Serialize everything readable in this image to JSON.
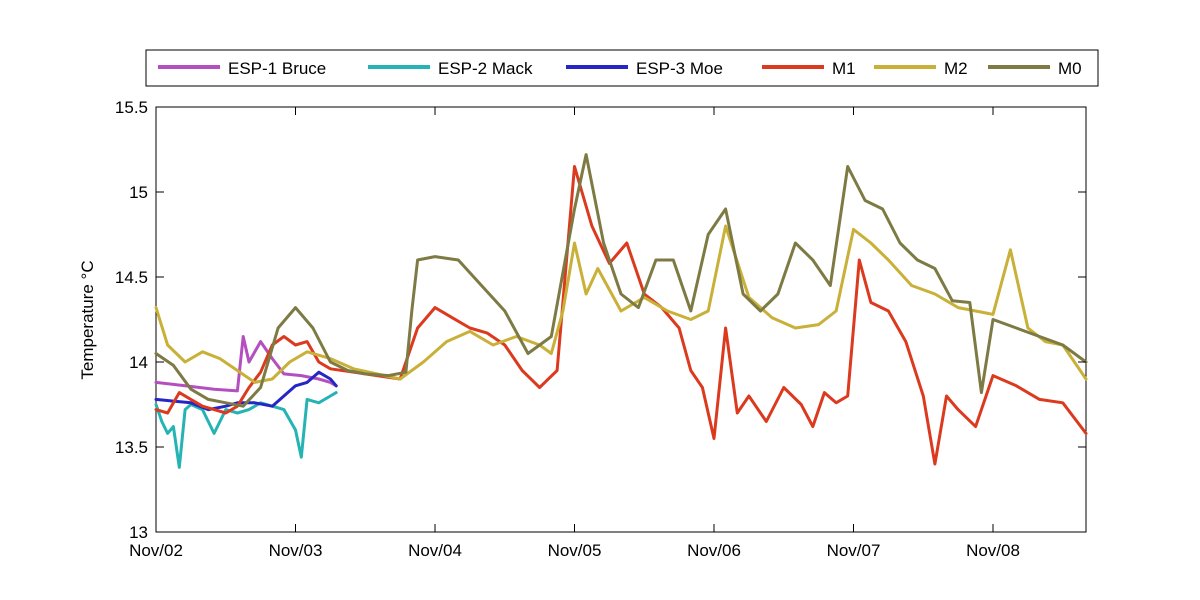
{
  "chart_data": {
    "type": "line",
    "title": "",
    "xlabel": "",
    "ylabel": "Temperature °C",
    "ylim": [
      13,
      15.5
    ],
    "xlim": [
      "2012-11-02",
      "2012-11-08 16:00"
    ],
    "x_ticks": [
      "Nov/02",
      "Nov/03",
      "Nov/04",
      "Nov/05",
      "Nov/06",
      "Nov/07",
      "Nov/08"
    ],
    "y_ticks": [
      "13",
      "13.5",
      "14",
      "14.5",
      "15",
      "15.5"
    ],
    "grid": false,
    "legend_position": "top",
    "series": [
      {
        "name": "ESP-1 Bruce",
        "color": "#b44fc0",
        "x": [
          "2012-11-02 00:00",
          "2012-11-02 05:00",
          "2012-11-02 10:00",
          "2012-11-02 14:00",
          "2012-11-02 15:00",
          "2012-11-02 16:00",
          "2012-11-02 18:00",
          "2012-11-02 20:00",
          "2012-11-02 22:00",
          "2012-11-03 01:00",
          "2012-11-03 04:00",
          "2012-11-03 06:00",
          "2012-11-03 07:00"
        ],
        "y": [
          13.88,
          13.86,
          13.84,
          13.83,
          14.15,
          14.0,
          14.12,
          14.02,
          13.93,
          13.92,
          13.9,
          13.88,
          13.86
        ]
      },
      {
        "name": "ESP-2 Mack",
        "color": "#25b3b3",
        "x": [
          "2012-11-02 00:00",
          "2012-11-02 01:00",
          "2012-11-02 02:00",
          "2012-11-02 03:00",
          "2012-11-02 04:00",
          "2012-11-02 05:00",
          "2012-11-02 06:00",
          "2012-11-02 08:00",
          "2012-11-02 10:00",
          "2012-11-02 12:00",
          "2012-11-02 14:00",
          "2012-11-02 16:00",
          "2012-11-02 18:00",
          "2012-11-02 20:00",
          "2012-11-02 22:00",
          "2012-11-03 00:00",
          "2012-11-03 01:00",
          "2012-11-03 02:00",
          "2012-11-03 04:00",
          "2012-11-03 06:00",
          "2012-11-03 07:00"
        ],
        "y": [
          13.75,
          13.65,
          13.58,
          13.62,
          13.38,
          13.72,
          13.75,
          13.72,
          13.58,
          13.72,
          13.7,
          13.72,
          13.76,
          13.74,
          13.72,
          13.6,
          13.44,
          13.78,
          13.76,
          13.8,
          13.82
        ]
      },
      {
        "name": "ESP-3 Moe",
        "color": "#2626c6",
        "x": [
          "2012-11-02 00:00",
          "2012-11-02 03:00",
          "2012-11-02 06:00",
          "2012-11-02 09:00",
          "2012-11-02 12:00",
          "2012-11-02 14:00",
          "2012-11-02 17:00",
          "2012-11-02 20:00",
          "2012-11-02 22:00",
          "2012-11-03 00:00",
          "2012-11-03 02:00",
          "2012-11-03 04:00",
          "2012-11-03 06:00",
          "2012-11-03 07:00"
        ],
        "y": [
          13.78,
          13.77,
          13.76,
          13.72,
          13.74,
          13.76,
          13.76,
          13.74,
          13.8,
          13.86,
          13.88,
          13.94,
          13.9,
          13.86
        ]
      },
      {
        "name": "M1",
        "color": "#dc3a1f",
        "x": [
          "2012-11-02 00:00",
          "2012-11-02 02:00",
          "2012-11-02 04:00",
          "2012-11-02 06:00",
          "2012-11-02 08:00",
          "2012-11-02 10:00",
          "2012-11-02 12:00",
          "2012-11-02 14:00",
          "2012-11-02 16:00",
          "2012-11-02 18:00",
          "2012-11-02 20:00",
          "2012-11-02 22:00",
          "2012-11-03 00:00",
          "2012-11-03 02:00",
          "2012-11-03 04:00",
          "2012-11-03 06:00",
          "2012-11-03 10:00",
          "2012-11-03 14:00",
          "2012-11-03 18:00",
          "2012-11-03 21:00",
          "2012-11-04 00:00",
          "2012-11-04 03:00",
          "2012-11-04 06:00",
          "2012-11-04 09:00",
          "2012-11-04 12:00",
          "2012-11-04 15:00",
          "2012-11-04 18:00",
          "2012-11-04 21:00",
          "2012-11-05 00:00",
          "2012-11-05 03:00",
          "2012-11-05 06:00",
          "2012-11-05 09:00",
          "2012-11-05 12:00",
          "2012-11-05 15:00",
          "2012-11-05 18:00",
          "2012-11-05 20:00",
          "2012-11-05 22:00",
          "2012-11-06 00:00",
          "2012-11-06 02:00",
          "2012-11-06 04:00",
          "2012-11-06 06:00",
          "2012-11-06 09:00",
          "2012-11-06 12:00",
          "2012-11-06 15:00",
          "2012-11-06 17:00",
          "2012-11-06 19:00",
          "2012-11-06 21:00",
          "2012-11-06 23:00",
          "2012-11-07 01:00",
          "2012-11-07 03:00",
          "2012-11-07 06:00",
          "2012-11-07 09:00",
          "2012-11-07 12:00",
          "2012-11-07 14:00",
          "2012-11-07 16:00",
          "2012-11-07 18:00",
          "2012-11-07 21:00",
          "2012-11-08 00:00",
          "2012-11-08 04:00",
          "2012-11-08 08:00",
          "2012-11-08 12:00",
          "2012-11-08 16:00"
        ],
        "y": [
          13.72,
          13.7,
          13.82,
          13.78,
          13.74,
          13.72,
          13.7,
          13.74,
          13.85,
          13.94,
          14.1,
          14.15,
          14.1,
          14.12,
          14.0,
          13.96,
          13.94,
          13.92,
          13.9,
          14.2,
          14.32,
          14.26,
          14.2,
          14.17,
          14.1,
          13.95,
          13.85,
          13.95,
          15.15,
          14.8,
          14.58,
          14.7,
          14.4,
          14.32,
          14.2,
          13.95,
          13.85,
          13.55,
          14.2,
          13.7,
          13.8,
          13.65,
          13.85,
          13.75,
          13.62,
          13.82,
          13.76,
          13.8,
          14.6,
          14.35,
          14.3,
          14.12,
          13.8,
          13.4,
          13.8,
          13.72,
          13.62,
          13.92,
          13.86,
          13.78,
          13.76,
          13.58
        ]
      },
      {
        "name": "M2",
        "color": "#c9b038",
        "x": [
          "2012-11-02 00:00",
          "2012-11-02 02:00",
          "2012-11-02 05:00",
          "2012-11-02 08:00",
          "2012-11-02 11:00",
          "2012-11-02 14:00",
          "2012-11-02 17:00",
          "2012-11-02 20:00",
          "2012-11-02 23:00",
          "2012-11-03 02:00",
          "2012-11-03 06:00",
          "2012-11-03 10:00",
          "2012-11-03 14:00",
          "2012-11-03 18:00",
          "2012-11-03 22:00",
          "2012-11-04 02:00",
          "2012-11-04 06:00",
          "2012-11-04 10:00",
          "2012-11-04 14:00",
          "2012-11-04 18:00",
          "2012-11-04 20:00",
          "2012-11-04 22:00",
          "2012-11-05 00:00",
          "2012-11-05 02:00",
          "2012-11-05 04:00",
          "2012-11-05 08:00",
          "2012-11-05 12:00",
          "2012-11-05 16:00",
          "2012-11-05 20:00",
          "2012-11-05 23:00",
          "2012-11-06 02:00",
          "2012-11-06 06:00",
          "2012-11-06 10:00",
          "2012-11-06 14:00",
          "2012-11-06 18:00",
          "2012-11-06 21:00",
          "2012-11-07 00:00",
          "2012-11-07 03:00",
          "2012-11-07 06:00",
          "2012-11-07 10:00",
          "2012-11-07 14:00",
          "2012-11-07 18:00",
          "2012-11-07 21:00",
          "2012-11-08 00:00",
          "2012-11-08 03:00",
          "2012-11-08 06:00",
          "2012-11-08 09:00",
          "2012-11-08 12:00",
          "2012-11-08 16:00"
        ],
        "y": [
          14.32,
          14.1,
          14.0,
          14.06,
          14.02,
          13.95,
          13.88,
          13.9,
          14.0,
          14.06,
          14.02,
          13.96,
          13.93,
          13.9,
          14.0,
          14.12,
          14.18,
          14.1,
          14.15,
          14.1,
          14.05,
          14.3,
          14.7,
          14.4,
          14.55,
          14.3,
          14.38,
          14.3,
          14.25,
          14.3,
          14.8,
          14.38,
          14.26,
          14.2,
          14.22,
          14.3,
          14.78,
          14.7,
          14.6,
          14.45,
          14.4,
          14.32,
          14.3,
          14.28,
          14.66,
          14.2,
          14.12,
          14.1,
          13.9
        ]
      },
      {
        "name": "M0",
        "color": "#7d7a44",
        "x": [
          "2012-11-02 00:00",
          "2012-11-02 03:00",
          "2012-11-02 06:00",
          "2012-11-02 09:00",
          "2012-11-02 12:00",
          "2012-11-02 15:00",
          "2012-11-02 18:00",
          "2012-11-02 21:00",
          "2012-11-03 00:00",
          "2012-11-03 03:00",
          "2012-11-03 06:00",
          "2012-11-03 09:00",
          "2012-11-03 12:00",
          "2012-11-03 16:00",
          "2012-11-03 19:00",
          "2012-11-03 20:00",
          "2012-11-03 21:00",
          "2012-11-04 00:00",
          "2012-11-04 04:00",
          "2012-11-04 08:00",
          "2012-11-04 12:00",
          "2012-11-04 16:00",
          "2012-11-04 20:00",
          "2012-11-05 00:00",
          "2012-11-05 02:00",
          "2012-11-05 05:00",
          "2012-11-05 08:00",
          "2012-11-05 11:00",
          "2012-11-05 14:00",
          "2012-11-05 17:00",
          "2012-11-05 20:00",
          "2012-11-05 23:00",
          "2012-11-06 02:00",
          "2012-11-06 05:00",
          "2012-11-06 08:00",
          "2012-11-06 11:00",
          "2012-11-06 14:00",
          "2012-11-06 17:00",
          "2012-11-06 20:00",
          "2012-11-06 23:00",
          "2012-11-07 02:00",
          "2012-11-07 05:00",
          "2012-11-07 08:00",
          "2012-11-07 11:00",
          "2012-11-07 14:00",
          "2012-11-07 17:00",
          "2012-11-07 20:00",
          "2012-11-07 22:00",
          "2012-11-08 00:00",
          "2012-11-08 04:00",
          "2012-11-08 08:00",
          "2012-11-08 12:00",
          "2012-11-08 16:00"
        ],
        "y": [
          14.05,
          13.98,
          13.84,
          13.78,
          13.76,
          13.74,
          13.85,
          14.2,
          14.32,
          14.2,
          14.0,
          13.95,
          13.93,
          13.92,
          13.94,
          14.3,
          14.6,
          14.62,
          14.6,
          14.45,
          14.3,
          14.05,
          14.15,
          14.9,
          15.22,
          14.7,
          14.4,
          14.32,
          14.6,
          14.6,
          14.3,
          14.75,
          14.9,
          14.4,
          14.3,
          14.4,
          14.7,
          14.6,
          14.45,
          15.15,
          14.95,
          14.9,
          14.7,
          14.6,
          14.55,
          14.36,
          14.35,
          13.82,
          14.25,
          14.2,
          14.15,
          14.1,
          14.0
        ]
      }
    ]
  }
}
